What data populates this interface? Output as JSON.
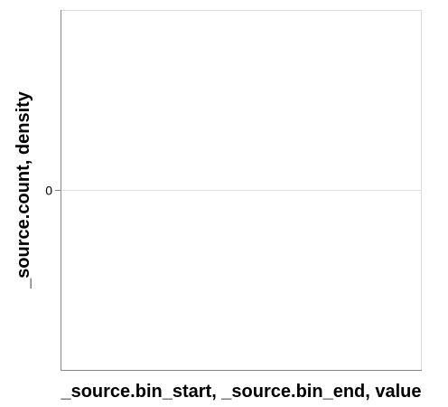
{
  "chart_data": {
    "type": "area",
    "title": "",
    "xlabel": "_source.bin_start, _source.bin_end, value",
    "ylabel": "_source.count, density",
    "y_ticks": [
      {
        "value": 0,
        "label": "0"
      }
    ],
    "ylim": [
      -1,
      1
    ],
    "grid": true,
    "series": [],
    "colors": {
      "axis": "#888888",
      "grid": "#dddddd",
      "frame": "#dddddd",
      "text": "#000000"
    }
  }
}
